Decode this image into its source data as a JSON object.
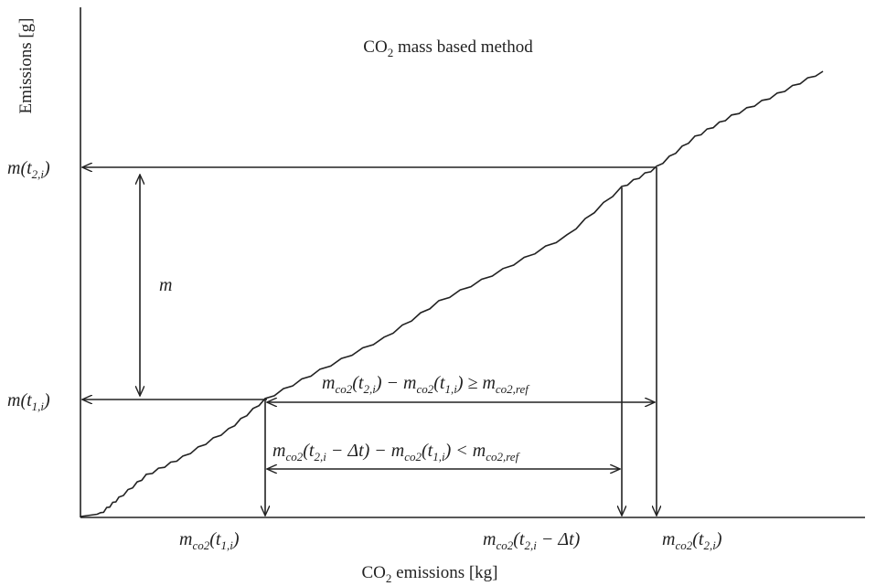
{
  "title": [
    "CO",
    {
      "sub": "2"
    },
    " mass based method"
  ],
  "y_axis_label": "Emissions [g]",
  "x_axis_label": [
    "CO",
    {
      "sub": "2"
    },
    " emissions [kg]"
  ],
  "m_label": "m",
  "y_labels": [
    [
      "m(t",
      {
        "sub": "2,i"
      },
      ")"
    ],
    [
      "m(t",
      {
        "sub": "1,i"
      },
      ")"
    ]
  ],
  "x_labels": [
    [
      "m",
      {
        "sub": "co2"
      },
      "(t",
      {
        "sub": "1,i"
      },
      ")"
    ],
    [
      "m",
      {
        "sub": "co2"
      },
      "(t",
      {
        "sub": "2,i"
      },
      " − Δt)"
    ],
    [
      "m",
      {
        "sub": "co2"
      },
      "(t",
      {
        "sub": "2,i"
      },
      ")"
    ]
  ],
  "conditions": [
    [
      "m",
      {
        "sub": "co2"
      },
      "(t",
      {
        "sub": "2,i"
      },
      ") − m",
      {
        "sub": "co2"
      },
      "(t",
      {
        "sub": "1,i"
      },
      ") ≥ m",
      {
        "sub": "co2,ref"
      }
    ],
    [
      "m",
      {
        "sub": "co2"
      },
      "(t",
      {
        "sub": "2,i"
      },
      " − Δt) − m",
      {
        "sub": "co2"
      },
      "(t",
      {
        "sub": "1,i"
      },
      ") < m",
      {
        "sub": "co2,ref"
      }
    ]
  ]
}
